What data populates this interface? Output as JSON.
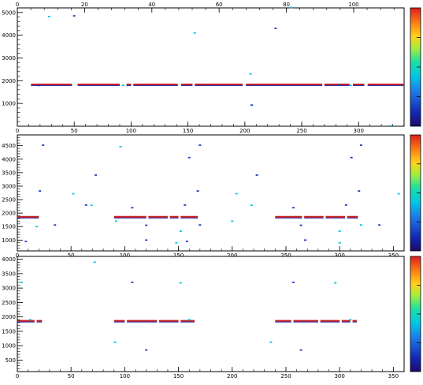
{
  "chart_data": [
    {
      "type": "scatter",
      "title": "",
      "xlabel": "",
      "ylabel": "",
      "xlim": [
        0,
        340
      ],
      "ylim": [
        0,
        5200
      ],
      "x_ticks": [
        0,
        50,
        100,
        150,
        200,
        250,
        300
      ],
      "x_tick_labels": [
        "0",
        "50",
        "100",
        "150",
        "200",
        "250",
        "300"
      ],
      "top_axis": {
        "xlim": [
          0,
          115
        ],
        "ticks": [
          0,
          20,
          40,
          60,
          80,
          100
        ],
        "tick_labels": [
          "0",
          "20",
          "40",
          "60",
          "80",
          "100"
        ]
      },
      "y_ticks": [
        1000,
        2000,
        3000,
        4000,
        5000
      ],
      "y_tick_labels": [
        "1000",
        "2000",
        "3000",
        "4000",
        "5000"
      ],
      "grid": false,
      "colorbar": true,
      "band": {
        "y": 1820,
        "segments": [
          [
            12,
            48
          ],
          [
            53,
            90
          ],
          [
            96,
            100
          ],
          [
            102,
            141
          ],
          [
            144,
            154
          ],
          [
            156,
            198
          ],
          [
            201,
            268
          ],
          [
            270,
            292
          ],
          [
            295,
            305
          ],
          [
            308,
            340
          ]
        ]
      },
      "points": [
        {
          "x": 28,
          "y": 4820,
          "c": "#00c8e6"
        },
        {
          "x": 50,
          "y": 4850,
          "c": "#1e3cc8"
        },
        {
          "x": 156,
          "y": 4100,
          "c": "#00c8e6"
        },
        {
          "x": 227,
          "y": 4300,
          "c": "#1e3cc8"
        },
        {
          "x": 241,
          "y": 5220,
          "c": "#00c8e6"
        },
        {
          "x": 205,
          "y": 2300,
          "c": "#00c8e6"
        },
        {
          "x": 206,
          "y": 930,
          "c": "#1e3cc8"
        },
        {
          "x": 293,
          "y": 1800,
          "c": "#00c8e6"
        },
        {
          "x": 283,
          "y": 1810,
          "c": "#1e3cc8"
        },
        {
          "x": 93,
          "y": 1800,
          "c": "#00c8e6"
        },
        {
          "x": 19,
          "y": 1790,
          "c": "#1e3cc8"
        },
        {
          "x": 328,
          "y": 30,
          "c": "#00c8e6"
        }
      ]
    },
    {
      "type": "scatter",
      "title": "",
      "xlabel": "",
      "ylabel": "",
      "xlim": [
        0,
        360
      ],
      "ylim": [
        600,
        4900
      ],
      "x_ticks": [
        0,
        50,
        100,
        150,
        200,
        250,
        300,
        350
      ],
      "x_tick_labels": [
        "0",
        "50",
        "100",
        "150",
        "200",
        "250",
        "300",
        "350"
      ],
      "y_ticks": [
        1000,
        1500,
        2000,
        2500,
        3000,
        3500,
        4000,
        4500
      ],
      "y_tick_labels": [
        "1000",
        "1500",
        "2000",
        "2500",
        "3000",
        "3500",
        "4000",
        "4500"
      ],
      "grid": false,
      "colorbar": true,
      "band": {
        "y": 1850,
        "segments": [
          [
            0,
            20
          ],
          [
            90,
            120
          ],
          [
            122,
            140
          ],
          [
            142,
            150
          ],
          [
            152,
            168
          ],
          [
            240,
            265
          ],
          [
            267,
            285
          ],
          [
            287,
            305
          ],
          [
            307,
            317
          ]
        ]
      },
      "points": [
        {
          "x": 24,
          "y": 4520,
          "c": "#1e3cc8"
        },
        {
          "x": 96,
          "y": 4460,
          "c": "#00c8e6"
        },
        {
          "x": 170,
          "y": 4520,
          "c": "#1e3cc8"
        },
        {
          "x": 320,
          "y": 4520,
          "c": "#1e3cc8"
        },
        {
          "x": 160,
          "y": 4060,
          "c": "#1e3cc8"
        },
        {
          "x": 311,
          "y": 4060,
          "c": "#1e3cc8"
        },
        {
          "x": 73,
          "y": 3410,
          "c": "#1e3cc8"
        },
        {
          "x": 223,
          "y": 3410,
          "c": "#1e3cc8"
        },
        {
          "x": 21,
          "y": 2820,
          "c": "#1e3cc8"
        },
        {
          "x": 168,
          "y": 2820,
          "c": "#1e3cc8"
        },
        {
          "x": 318,
          "y": 2820,
          "c": "#1e3cc8"
        },
        {
          "x": 52,
          "y": 2720,
          "c": "#00c8e6"
        },
        {
          "x": 204,
          "y": 2720,
          "c": "#00c8e6"
        },
        {
          "x": 355,
          "y": 2720,
          "c": "#00c8e6"
        },
        {
          "x": 64,
          "y": 2300,
          "c": "#1e3cc8"
        },
        {
          "x": 69,
          "y": 2290,
          "c": "#00c8e6"
        },
        {
          "x": 107,
          "y": 2200,
          "c": "#1e3cc8"
        },
        {
          "x": 156,
          "y": 2300,
          "c": "#1e3cc8"
        },
        {
          "x": 218,
          "y": 2290,
          "c": "#00c8e6"
        },
        {
          "x": 257,
          "y": 2200,
          "c": "#1e3cc8"
        },
        {
          "x": 306,
          "y": 2300,
          "c": "#1e3cc8"
        },
        {
          "x": 35,
          "y": 1560,
          "c": "#1e3cc8"
        },
        {
          "x": 18,
          "y": 1500,
          "c": "#00c8e6"
        },
        {
          "x": 120,
          "y": 1550,
          "c": "#1e3cc8"
        },
        {
          "x": 170,
          "y": 1560,
          "c": "#1e3cc8"
        },
        {
          "x": 264,
          "y": 1550,
          "c": "#1e3cc8"
        },
        {
          "x": 320,
          "y": 1560,
          "c": "#00c8e6"
        },
        {
          "x": 337,
          "y": 1560,
          "c": "#1e3cc8"
        },
        {
          "x": 152,
          "y": 1330,
          "c": "#00c8e6"
        },
        {
          "x": 300,
          "y": 1330,
          "c": "#00c8e6"
        },
        {
          "x": 92,
          "y": 1700,
          "c": "#00c8e6"
        },
        {
          "x": 120,
          "y": 1000,
          "c": "#1e3cc8"
        },
        {
          "x": 148,
          "y": 900,
          "c": "#00c8e6"
        },
        {
          "x": 268,
          "y": 1000,
          "c": "#1e3cc8"
        },
        {
          "x": 300,
          "y": 900,
          "c": "#00c8e6"
        },
        {
          "x": 8,
          "y": 950,
          "c": "#1e3cc8"
        },
        {
          "x": 158,
          "y": 950,
          "c": "#1e3cc8"
        },
        {
          "x": 200,
          "y": 1700,
          "c": "#00c8e6"
        }
      ]
    },
    {
      "type": "scatter",
      "title": "",
      "xlabel": "",
      "ylabel": "",
      "xlim": [
        0,
        360
      ],
      "ylim": [
        100,
        4100
      ],
      "x_ticks": [
        0,
        50,
        100,
        150,
        200,
        250,
        300,
        350
      ],
      "x_tick_labels": [
        "0",
        "50",
        "100",
        "150",
        "200",
        "250",
        "300",
        "350"
      ],
      "y_ticks": [
        500,
        1000,
        1500,
        2000,
        2500,
        3000,
        3500,
        4000
      ],
      "y_tick_labels": [
        "500",
        "1000",
        "1500",
        "2000",
        "2500",
        "3000",
        "3500",
        "4000"
      ],
      "grid": false,
      "colorbar": true,
      "band": {
        "y": 1850,
        "segments": [
          [
            0,
            16
          ],
          [
            18,
            23
          ],
          [
            90,
            100
          ],
          [
            102,
            130
          ],
          [
            132,
            150
          ],
          [
            152,
            165
          ],
          [
            240,
            255
          ],
          [
            257,
            280
          ],
          [
            282,
            300
          ],
          [
            302,
            310
          ],
          [
            312,
            316
          ]
        ]
      },
      "points": [
        {
          "x": 12,
          "y": 1900,
          "c": "#00c8e6"
        },
        {
          "x": 160,
          "y": 1900,
          "c": "#00c8e6"
        },
        {
          "x": 310,
          "y": 1900,
          "c": "#00c8e6"
        },
        {
          "x": 72,
          "y": 3900,
          "c": "#00c8e6"
        },
        {
          "x": 107,
          "y": 3200,
          "c": "#1e3cc8"
        },
        {
          "x": 152,
          "y": 3180,
          "c": "#00c8e6"
        },
        {
          "x": 257,
          "y": 3200,
          "c": "#1e3cc8"
        },
        {
          "x": 296,
          "y": 3180,
          "c": "#00c8e6"
        },
        {
          "x": 91,
          "y": 1120,
          "c": "#00c8e6"
        },
        {
          "x": 236,
          "y": 1120,
          "c": "#00c8e6"
        },
        {
          "x": 120,
          "y": 850,
          "c": "#1e3cc8"
        },
        {
          "x": 264,
          "y": 850,
          "c": "#1e3cc8"
        },
        {
          "x": 4,
          "y": 3200,
          "c": "#00c8e6"
        }
      ]
    }
  ]
}
